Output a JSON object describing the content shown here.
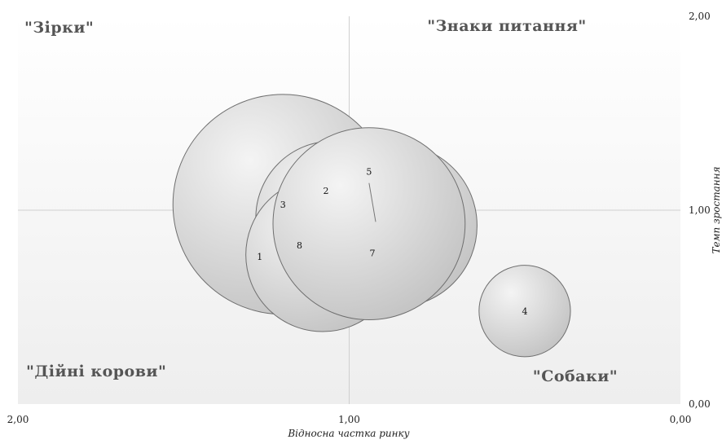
{
  "chart_data": {
    "type": "bubble",
    "title": "",
    "xlabel": "Відносна частка ринку",
    "ylabel": "Темп зростання",
    "xlim": [
      2.0,
      0.0
    ],
    "ylim": [
      0.0,
      2.0
    ],
    "x_reversed": true,
    "x_ticks": [
      "2,00",
      "1,00",
      "0,00"
    ],
    "y_ticks": [
      "0,00",
      "1,00",
      "2,00"
    ],
    "grid": "quadrant lines at x=1 and y=1",
    "quadrant_labels": {
      "top_left": "\"Зірки\"",
      "top_right": "\"Знаки питання\"",
      "bottom_left": "\"Дійні корови\"",
      "bottom_right": "\"Собаки\""
    },
    "series": [
      {
        "label": "3",
        "x": 1.2,
        "y": 1.03,
        "size": 0.166
      },
      {
        "label": "2",
        "x": 1.05,
        "y": 0.96,
        "size": 0.116
      },
      {
        "label": "5",
        "x": 0.86,
        "y": 0.92,
        "size": 0.123
      },
      {
        "label": "1",
        "x": 1.1,
        "y": 0.91,
        "size": 0.005
      },
      {
        "label": "8",
        "x": 1.08,
        "y": 0.77,
        "size": 0.116
      },
      {
        "label": "7",
        "x": 0.94,
        "y": 0.93,
        "size": 0.145
      },
      {
        "label": "4",
        "x": 0.47,
        "y": 0.48,
        "size": 0.069
      }
    ],
    "label_positions": {
      "3": {
        "x": 1.2,
        "y": 1.03
      },
      "2": {
        "x": 1.07,
        "y": 1.1
      },
      "5": {
        "x": 0.94,
        "y": 1.2
      },
      "1": {
        "x": 1.27,
        "y": 0.76
      },
      "8": {
        "x": 1.15,
        "y": 0.82
      },
      "7": {
        "x": 0.93,
        "y": 0.78
      },
      "4": {
        "x": 0.47,
        "y": 0.48
      }
    },
    "leader_line": {
      "from": {
        "x": 0.94,
        "y": 1.14
      },
      "to": {
        "x": 0.92,
        "y": 0.94
      }
    },
    "colors": {
      "bubble_fill_light": "#f2f2f2",
      "bubble_fill_dark": "#c4c4c4",
      "bubble_stroke": "#6f6f6f",
      "grid": "#cfcfcf",
      "plot_bg_top": "#ffffff",
      "plot_bg_bottom": "#eeeeee"
    }
  }
}
